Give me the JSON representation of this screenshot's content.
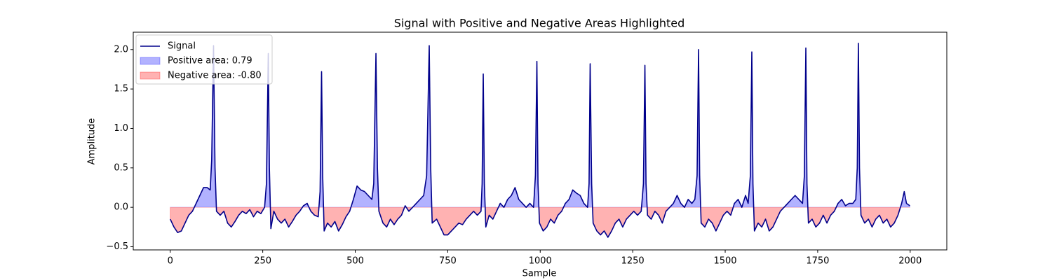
{
  "chart_data": {
    "type": "area-line",
    "title": "Signal with Positive and Negative Areas Highlighted",
    "x_label": "Sample",
    "y_label": "Amplitude",
    "xlim": [
      -100,
      2099
    ],
    "ylim": [
      -0.54,
      2.22
    ],
    "xticks": [
      0,
      250,
      500,
      750,
      1000,
      1250,
      1500,
      1750,
      2000
    ],
    "yticks": [
      {
        "value": -0.5,
        "label": "−0.5"
      },
      {
        "value": 0,
        "label": "0.0"
      },
      {
        "value": 0.5,
        "label": "0.5"
      },
      {
        "value": 1,
        "label": "1.0"
      },
      {
        "value": 1.5,
        "label": "1.5"
      },
      {
        "value": 2,
        "label": "2.0"
      }
    ],
    "legend": "upper left",
    "series": [
      {
        "name": "Signal",
        "color": "#00008b"
      }
    ],
    "areas": [
      {
        "name": "Positive area: 0.79",
        "color": "#0000ff"
      },
      {
        "name": "Negative area: -0.80",
        "color": "#ff0000"
      }
    ],
    "x": [
      0,
      10,
      20,
      30,
      40,
      50,
      60,
      70,
      80,
      90,
      100,
      108,
      112,
      117,
      121,
      125,
      135,
      145,
      155,
      165,
      175,
      185,
      195,
      205,
      215,
      225,
      235,
      245,
      255,
      260,
      265,
      268,
      272,
      280,
      290,
      300,
      310,
      320,
      330,
      340,
      350,
      360,
      370,
      380,
      390,
      400,
      405,
      409,
      412,
      416,
      425,
      435,
      445,
      455,
      465,
      475,
      485,
      495,
      505,
      515,
      525,
      535,
      545,
      550,
      556,
      560,
      564,
      575,
      585,
      595,
      605,
      615,
      625,
      635,
      645,
      655,
      665,
      675,
      685,
      693,
      700,
      704,
      708,
      720,
      730,
      740,
      750,
      760,
      770,
      780,
      790,
      800,
      810,
      820,
      830,
      840,
      843,
      846,
      849,
      853,
      862,
      872,
      882,
      892,
      902,
      912,
      922,
      932,
      942,
      952,
      962,
      972,
      982,
      987,
      991,
      994,
      998,
      1008,
      1018,
      1028,
      1038,
      1048,
      1058,
      1068,
      1078,
      1088,
      1098,
      1108,
      1118,
      1128,
      1132,
      1135,
      1139,
      1143,
      1153,
      1163,
      1173,
      1183,
      1193,
      1203,
      1213,
      1223,
      1233,
      1243,
      1253,
      1263,
      1273,
      1279,
      1283,
      1286,
      1290,
      1300,
      1310,
      1320,
      1330,
      1340,
      1350,
      1360,
      1370,
      1380,
      1390,
      1400,
      1410,
      1418,
      1424,
      1428,
      1431,
      1435,
      1445,
      1455,
      1465,
      1475,
      1485,
      1495,
      1505,
      1515,
      1525,
      1535,
      1545,
      1555,
      1562,
      1568,
      1572,
      1575,
      1579,
      1589,
      1599,
      1609,
      1619,
      1629,
      1639,
      1649,
      1659,
      1669,
      1679,
      1689,
      1699,
      1709,
      1714,
      1718,
      1721,
      1725,
      1735,
      1745,
      1755,
      1765,
      1775,
      1785,
      1795,
      1805,
      1815,
      1825,
      1835,
      1845,
      1853,
      1857,
      1860,
      1863,
      1867,
      1877,
      1887,
      1897,
      1907,
      1917,
      1927,
      1937,
      1947,
      1957,
      1967,
      1977,
      1984,
      1990,
      1999
    ],
    "values": [
      -0.15,
      -0.25,
      -0.32,
      -0.3,
      -0.2,
      -0.1,
      -0.05,
      0.05,
      0.15,
      0.25,
      0.25,
      0.22,
      0.6,
      2.05,
      0.5,
      -0.05,
      -0.1,
      -0.05,
      -0.2,
      -0.25,
      -0.18,
      -0.1,
      -0.05,
      -0.08,
      -0.03,
      -0.12,
      -0.05,
      -0.08,
      0.0,
      0.3,
      1.95,
      0.5,
      -0.27,
      -0.05,
      -0.15,
      -0.2,
      -0.15,
      -0.25,
      -0.18,
      -0.1,
      -0.05,
      0.02,
      0.05,
      -0.05,
      -0.1,
      -0.12,
      0.2,
      1.72,
      0.4,
      -0.3,
      -0.2,
      -0.25,
      -0.18,
      -0.3,
      -0.22,
      -0.12,
      -0.05,
      0.1,
      0.27,
      0.22,
      0.2,
      0.15,
      0.1,
      0.3,
      1.95,
      0.5,
      -0.05,
      -0.2,
      -0.25,
      -0.15,
      -0.22,
      -0.15,
      -0.1,
      0.02,
      -0.05,
      0.0,
      0.05,
      0.1,
      0.15,
      0.4,
      2.05,
      0.5,
      -0.2,
      -0.15,
      -0.25,
      -0.35,
      -0.35,
      -0.3,
      -0.25,
      -0.2,
      -0.22,
      -0.15,
      -0.1,
      -0.05,
      -0.1,
      -0.05,
      0.3,
      1.69,
      0.3,
      -0.25,
      -0.1,
      -0.15,
      -0.05,
      0.05,
      0.0,
      0.1,
      0.15,
      0.25,
      0.1,
      0.05,
      0.0,
      0.05,
      0.0,
      0.4,
      1.85,
      0.3,
      -0.2,
      -0.3,
      -0.25,
      -0.15,
      -0.2,
      -0.1,
      -0.05,
      0.05,
      0.1,
      0.22,
      0.18,
      0.15,
      0.05,
      0.0,
      0.3,
      1.82,
      0.3,
      -0.2,
      -0.3,
      -0.35,
      -0.3,
      -0.38,
      -0.3,
      -0.2,
      -0.15,
      -0.25,
      -0.15,
      -0.1,
      -0.05,
      -0.1,
      -0.05,
      0.3,
      1.8,
      0.3,
      -0.1,
      -0.15,
      -0.05,
      -0.1,
      -0.2,
      -0.05,
      0.0,
      0.05,
      0.15,
      0.05,
      0.0,
      0.1,
      0.05,
      0.1,
      0.4,
      2.0,
      0.4,
      -0.2,
      -0.25,
      -0.15,
      -0.2,
      -0.3,
      -0.2,
      -0.1,
      -0.05,
      -0.1,
      0.05,
      0.1,
      0.0,
      0.15,
      0.05,
      0.4,
      1.97,
      0.3,
      -0.3,
      -0.2,
      -0.25,
      -0.15,
      -0.3,
      -0.25,
      -0.15,
      -0.05,
      0.0,
      0.05,
      0.1,
      0.15,
      0.1,
      0.05,
      0.4,
      2.02,
      0.3,
      -0.2,
      -0.15,
      -0.25,
      -0.2,
      -0.1,
      -0.2,
      -0.1,
      -0.05,
      0.05,
      0.1,
      0.02,
      0.05,
      0.05,
      0.1,
      0.5,
      2.08,
      0.5,
      -0.1,
      -0.2,
      -0.15,
      -0.25,
      -0.15,
      -0.1,
      -0.2,
      -0.15,
      -0.25,
      -0.2,
      -0.1,
      0.05,
      0.2,
      0.05,
      0.02
    ]
  }
}
